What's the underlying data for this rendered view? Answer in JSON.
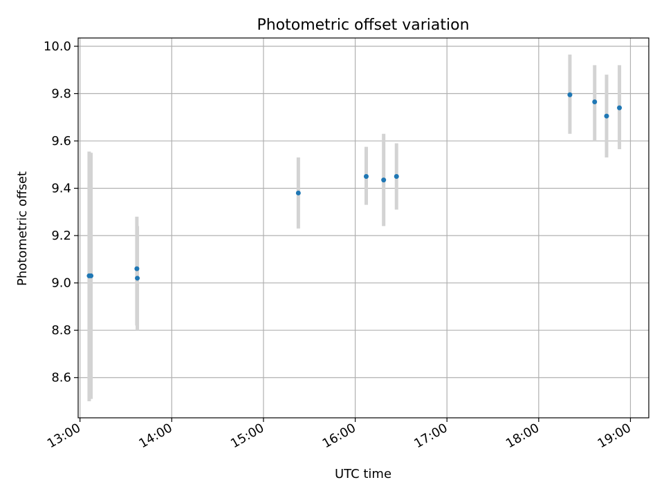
{
  "chart_data": {
    "type": "scatter",
    "title": "Photometric offset variation",
    "xlabel": "UTC time",
    "ylabel": "Photometric offset",
    "x_unit": "UTC hour of day (decimal)",
    "xlim": [
      12.98,
      19.2
    ],
    "ylim": [
      8.43,
      10.035
    ],
    "grid": true,
    "x_ticks": [
      13,
      14,
      15,
      16,
      17,
      18,
      19
    ],
    "x_tick_labels": [
      "13:00",
      "14:00",
      "15:00",
      "16:00",
      "17:00",
      "18:00",
      "19:00"
    ],
    "y_ticks": [
      8.6,
      8.8,
      9.0,
      9.2,
      9.4,
      9.6,
      9.8,
      10.0
    ],
    "y_tick_labels": [
      "8.6",
      "8.8",
      "9.0",
      "9.2",
      "9.4",
      "9.6",
      "9.8",
      "10.0"
    ],
    "colors": {
      "point": "#1f77b4",
      "errorbar": "#d3d3d3",
      "grid": "#b0b0b0"
    },
    "series": [
      {
        "points": [
          {
            "x": 13.1,
            "y": 9.03,
            "ylow": 8.5,
            "yhigh": 9.555
          },
          {
            "x": 13.12,
            "y": 9.03,
            "ylow": 8.51,
            "yhigh": 9.55
          },
          {
            "x": 13.62,
            "y": 9.06,
            "ylow": 8.82,
            "yhigh": 9.28
          },
          {
            "x": 13.625,
            "y": 9.02,
            "ylow": 8.8,
            "yhigh": 9.24
          },
          {
            "x": 15.38,
            "y": 9.38,
            "ylow": 9.23,
            "yhigh": 9.53
          },
          {
            "x": 16.12,
            "y": 9.45,
            "ylow": 9.33,
            "yhigh": 9.575
          },
          {
            "x": 16.31,
            "y": 9.435,
            "ylow": 9.24,
            "yhigh": 9.63
          },
          {
            "x": 16.45,
            "y": 9.45,
            "ylow": 9.31,
            "yhigh": 9.59
          },
          {
            "x": 18.34,
            "y": 9.795,
            "ylow": 9.63,
            "yhigh": 9.965
          },
          {
            "x": 18.61,
            "y": 9.765,
            "ylow": 9.6,
            "yhigh": 9.92
          },
          {
            "x": 18.74,
            "y": 9.705,
            "ylow": 9.53,
            "yhigh": 9.88
          },
          {
            "x": 18.88,
            "y": 9.74,
            "ylow": 9.565,
            "yhigh": 9.92
          }
        ]
      }
    ]
  }
}
